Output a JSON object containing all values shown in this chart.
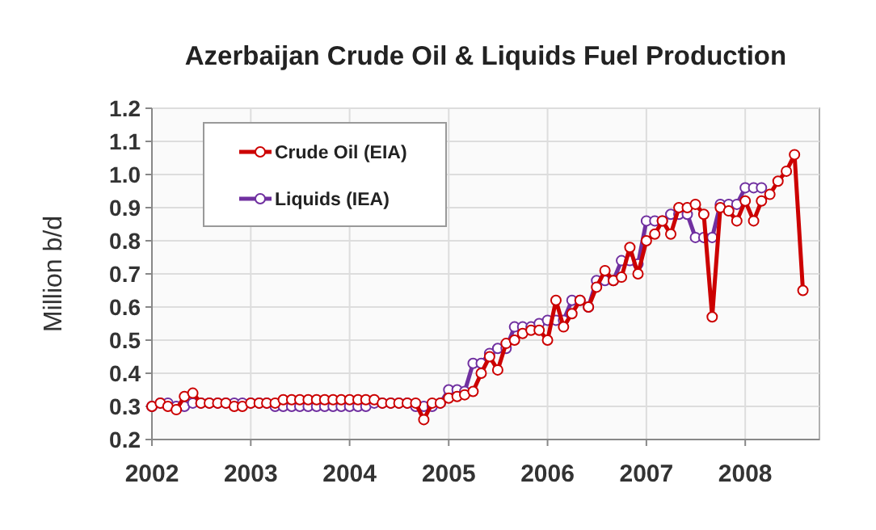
{
  "chart_data": {
    "type": "line",
    "title": "Azerbaijan Crude Oil & Liquids Fuel Production",
    "ylabel": "Million b/d",
    "xlim": [
      "2002-01",
      "2008-10"
    ],
    "xticks": [
      "2002",
      "2003",
      "2004",
      "2005",
      "2006",
      "2007",
      "2008"
    ],
    "ylim": [
      0.2,
      1.2
    ],
    "yticks": [
      0.2,
      0.3,
      0.4,
      0.5,
      0.6,
      0.7,
      0.8,
      0.9,
      {
        "value": 1,
        "label": "1.0"
      },
      1.1,
      1.2
    ],
    "grid": true,
    "legend": "top left",
    "marker": "circle",
    "line_style": "solid",
    "series": [
      {
        "name": "Crude Oil (EIA)",
        "color": "#cc0000",
        "x": [
          "2002-01",
          "2002-02",
          "2002-03",
          "2002-04",
          "2002-05",
          "2002-06",
          "2002-07",
          "2002-08",
          "2002-09",
          "2002-10",
          "2002-11",
          "2002-12",
          "2003-01",
          "2003-02",
          "2003-03",
          "2003-04",
          "2003-05",
          "2003-06",
          "2003-07",
          "2003-08",
          "2003-09",
          "2003-10",
          "2003-11",
          "2003-12",
          "2004-01",
          "2004-02",
          "2004-03",
          "2004-04",
          "2004-05",
          "2004-06",
          "2004-07",
          "2004-08",
          "2004-09",
          "2004-10",
          "2004-11",
          "2004-12",
          "2005-01",
          "2005-02",
          "2005-03",
          "2005-04",
          "2005-05",
          "2005-06",
          "2005-07",
          "2005-08",
          "2005-09",
          "2005-10",
          "2005-11",
          "2005-12",
          "2006-01",
          "2006-02",
          "2006-03",
          "2006-04",
          "2006-05",
          "2006-06",
          "2006-07",
          "2006-08",
          "2006-09",
          "2006-10",
          "2006-11",
          "2006-12",
          "2007-01",
          "2007-02",
          "2007-03",
          "2007-04",
          "2007-05",
          "2007-06",
          "2007-07",
          "2007-08",
          "2007-09",
          "2007-10",
          "2007-11",
          "2007-12",
          "2008-01",
          "2008-02",
          "2008-03",
          "2008-04",
          "2008-05",
          "2008-06",
          "2008-07",
          "2008-08"
        ],
        "values": [
          0.3,
          0.31,
          0.3,
          0.29,
          0.33,
          0.34,
          0.31,
          0.31,
          0.31,
          0.31,
          0.3,
          0.3,
          0.31,
          0.31,
          0.31,
          0.31,
          0.32,
          0.32,
          0.32,
          0.32,
          0.32,
          0.32,
          0.32,
          0.32,
          0.32,
          0.32,
          0.32,
          0.32,
          0.31,
          0.31,
          0.31,
          0.31,
          0.31,
          0.26,
          0.31,
          0.31,
          0.325,
          0.33,
          0.335,
          0.345,
          0.4,
          0.45,
          0.41,
          0.49,
          0.5,
          0.52,
          0.53,
          0.53,
          0.5,
          0.62,
          0.54,
          0.58,
          0.62,
          0.6,
          0.66,
          0.71,
          0.68,
          0.69,
          0.78,
          0.7,
          0.8,
          0.82,
          0.86,
          0.82,
          0.9,
          0.9,
          0.91,
          0.88,
          0.57,
          0.9,
          0.89,
          0.86,
          0.92,
          0.86,
          0.92,
          0.94,
          0.98,
          1.01,
          1.06,
          0.65
        ]
      },
      {
        "name": "Liquids (IEA)",
        "color": "#7030a0",
        "x": [
          "2002-01",
          "2002-02",
          "2002-03",
          "2002-04",
          "2002-05",
          "2002-06",
          "2002-07",
          "2002-08",
          "2002-09",
          "2002-10",
          "2002-11",
          "2002-12",
          "2003-01",
          "2003-02",
          "2003-03",
          "2003-04",
          "2003-05",
          "2003-06",
          "2003-07",
          "2003-08",
          "2003-09",
          "2003-10",
          "2003-11",
          "2003-12",
          "2004-01",
          "2004-02",
          "2004-03",
          "2004-04",
          "2004-05",
          "2004-06",
          "2004-07",
          "2004-08",
          "2004-09",
          "2004-10",
          "2004-11",
          "2004-12",
          "2005-01",
          "2005-02",
          "2005-03",
          "2005-04",
          "2005-05",
          "2005-06",
          "2005-07",
          "2005-08",
          "2005-09",
          "2005-10",
          "2005-11",
          "2005-12",
          "2006-01",
          "2006-02",
          "2006-03",
          "2006-04",
          "2006-05",
          "2006-06",
          "2006-07",
          "2006-08",
          "2006-09",
          "2006-10",
          "2006-11",
          "2006-12",
          "2007-01",
          "2007-02",
          "2007-03",
          "2007-04",
          "2007-05",
          "2007-06",
          "2007-07",
          "2007-08",
          "2007-09",
          "2007-10",
          "2007-11",
          "2007-12",
          "2008-01",
          "2008-02",
          "2008-03"
        ],
        "values": [
          0.3,
          0.31,
          0.31,
          0.3,
          0.3,
          0.31,
          0.31,
          0.31,
          0.31,
          0.31,
          0.31,
          0.31,
          0.31,
          0.31,
          0.31,
          0.3,
          0.3,
          0.3,
          0.3,
          0.3,
          0.3,
          0.3,
          0.3,
          0.3,
          0.3,
          0.3,
          0.3,
          0.31,
          0.31,
          0.31,
          0.31,
          0.31,
          0.3,
          0.3,
          0.3,
          0.31,
          0.35,
          0.35,
          0.345,
          0.43,
          0.43,
          0.46,
          0.475,
          0.475,
          0.54,
          0.54,
          0.54,
          0.55,
          0.56,
          0.56,
          0.56,
          0.62,
          0.62,
          0.6,
          0.68,
          0.68,
          0.68,
          0.74,
          0.74,
          0.73,
          0.86,
          0.86,
          0.86,
          0.88,
          0.88,
          0.88,
          0.81,
          0.81,
          0.81,
          0.91,
          0.91,
          0.91,
          0.96,
          0.96,
          0.96
        ]
      }
    ]
  }
}
